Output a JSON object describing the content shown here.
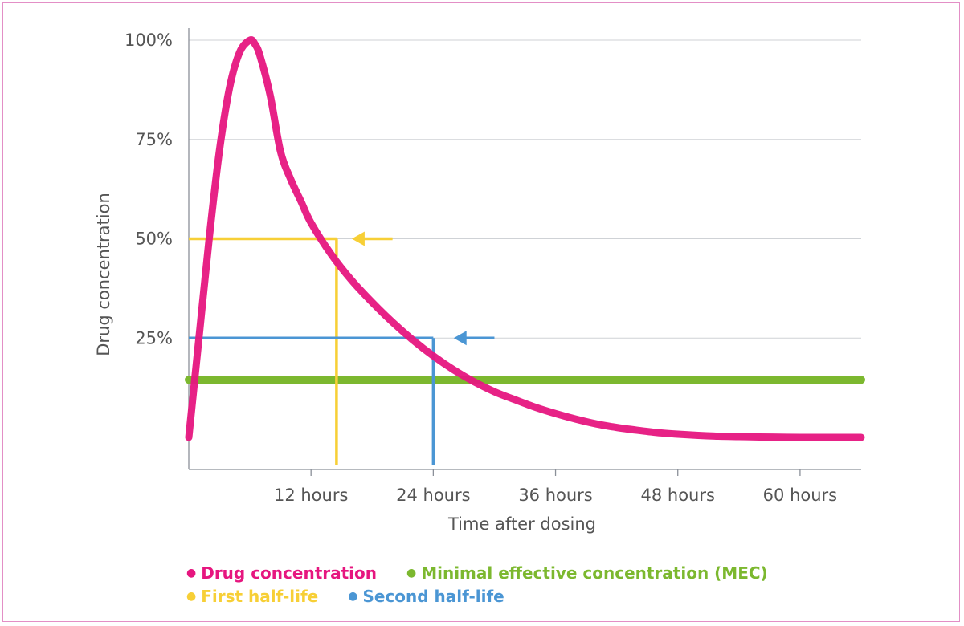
{
  "chart_data": {
    "type": "line",
    "xlabel": "Time after dosing",
    "ylabel": "Drug concentration",
    "x_ticks": [
      {
        "value": 12,
        "label": "12 hours"
      },
      {
        "value": 24,
        "label": "24 hours"
      },
      {
        "value": 36,
        "label": "36 hours"
      },
      {
        "value": 48,
        "label": "48 hours"
      },
      {
        "value": 60,
        "label": "60 hours"
      }
    ],
    "y_ticks": [
      {
        "value": 25,
        "label": "25%"
      },
      {
        "value": 50,
        "label": "50%"
      },
      {
        "value": 75,
        "label": "75%"
      },
      {
        "value": 100,
        "label": "100%"
      }
    ],
    "xlim": [
      0,
      66
    ],
    "ylim": [
      0,
      108
    ],
    "grid": "horizontal",
    "series": [
      {
        "name": "Drug concentration",
        "color": "#e6167f",
        "x": [
          0,
          1,
          2,
          3,
          4,
          5,
          6,
          6.5,
          7,
          8,
          9,
          10,
          11,
          12,
          14,
          16,
          18,
          20,
          22,
          24,
          26,
          28,
          30,
          32,
          34,
          36,
          38,
          40,
          42,
          44,
          46,
          48,
          50,
          52,
          54,
          56,
          58,
          60,
          62,
          64,
          66
        ],
        "y": [
          0,
          25,
          50,
          72,
          88,
          97,
          100,
          99,
          96,
          86,
          72,
          65,
          59.5,
          54,
          46,
          39.5,
          34,
          29,
          24.5,
          20.5,
          17,
          14,
          11.5,
          9.5,
          7.6,
          6,
          4.6,
          3.4,
          2.5,
          1.8,
          1.2,
          0.8,
          0.5,
          0.3,
          0.2,
          0.1,
          0.05,
          0,
          0,
          0,
          0
        ]
      }
    ],
    "reference_lines": [
      {
        "name": "Minimal effective concentration (MEC)",
        "type": "horizontal",
        "y": 14.5,
        "x_from": 0,
        "x_to": 66,
        "color": "#7cb82f"
      },
      {
        "name": "First half-life",
        "color": "#f7cf36",
        "level": 50,
        "time": 14.5,
        "arrow_tail_x": 20,
        "arrow_head_x": 16
      },
      {
        "name": "Second half-life",
        "color": "#4b96d4",
        "level": 25,
        "time": 24,
        "arrow_tail_x": 30,
        "arrow_head_x": 26
      }
    ]
  },
  "legend": {
    "rows": [
      [
        {
          "label": "Drug concentration",
          "color": "#e6167f"
        },
        {
          "label": "Minimal effective concentration (MEC)",
          "color": "#7cb82f"
        }
      ],
      [
        {
          "label": "First half-life",
          "color": "#f7cf36"
        },
        {
          "label": "Second half-life",
          "color": "#4b96d4"
        }
      ]
    ]
  }
}
